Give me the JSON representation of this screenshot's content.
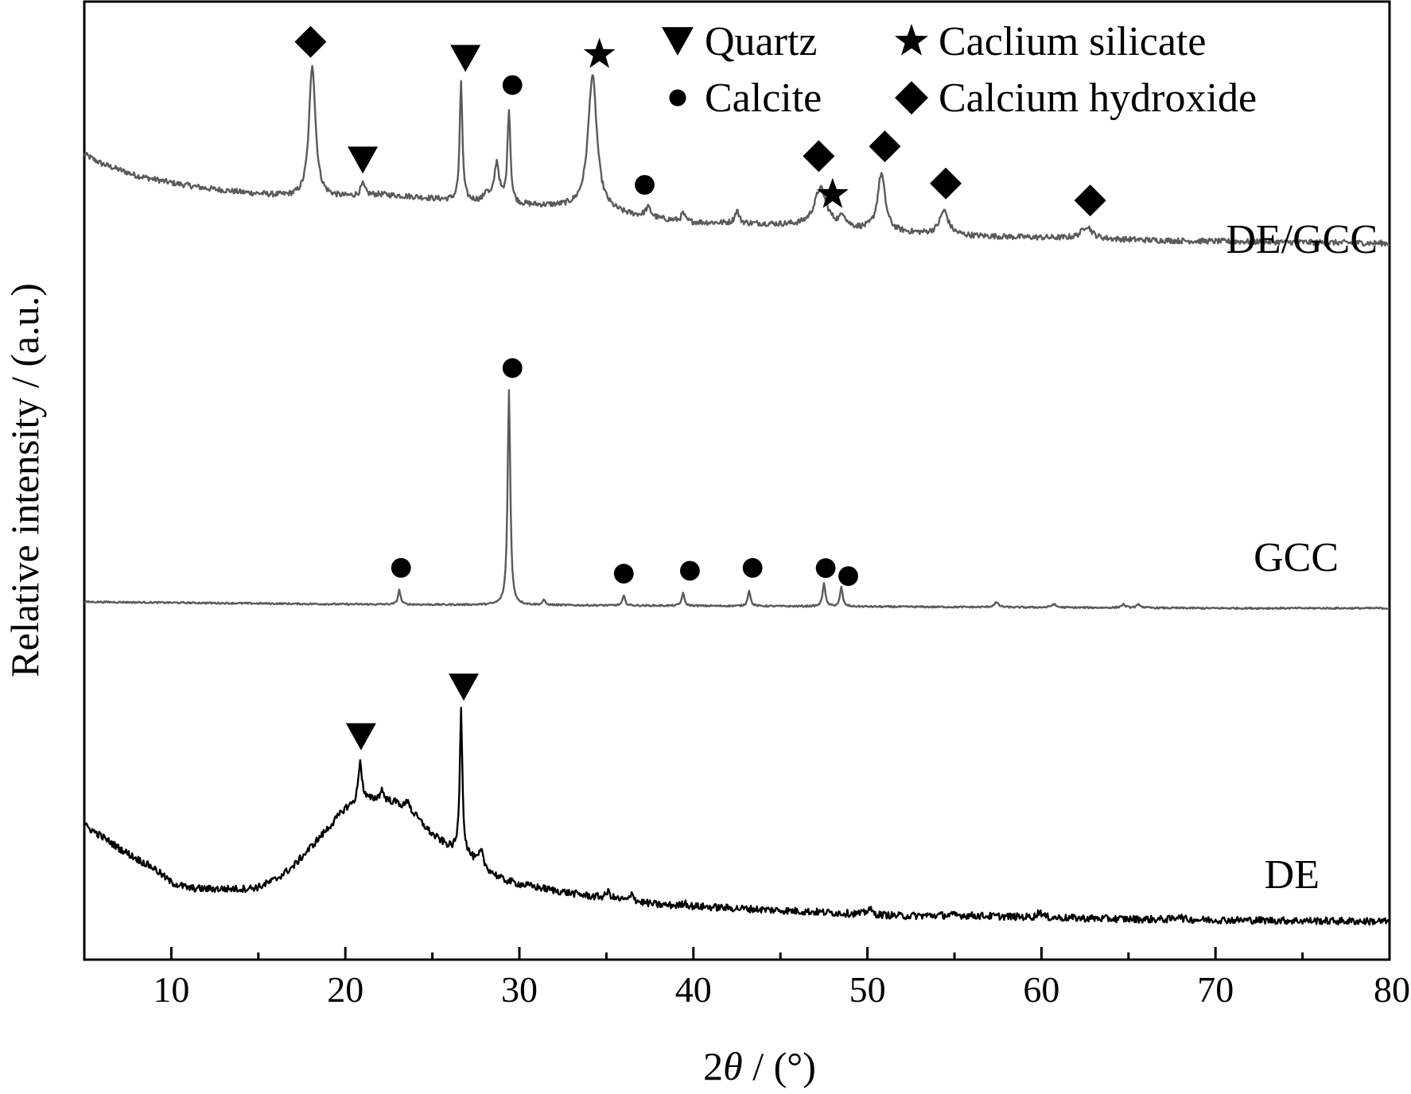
{
  "chart_data": {
    "type": "line",
    "xlabel_prefix": "2",
    "xlabel_theta": "θ",
    "xlabel_suffix": " / (°)",
    "ylabel": "Relative intensity / (a.u.)",
    "xlim": [
      5,
      80
    ],
    "x_ticks": [
      10,
      20,
      30,
      40,
      50,
      60,
      70,
      80
    ],
    "x_tick_labels": [
      "10",
      "20",
      "30",
      "40",
      "50",
      "60",
      "70",
      "80"
    ],
    "y_ticks_shown": false,
    "grid": false,
    "legend_position": "top-right",
    "legend": [
      {
        "marker": "triangle-down",
        "label": "Quartz"
      },
      {
        "marker": "star",
        "label": "Caclium silicate"
      },
      {
        "marker": "circle",
        "label": "Calcite"
      },
      {
        "marker": "diamond",
        "label": "Calcium hydroxide"
      }
    ],
    "series": [
      {
        "name": "DE/GCC",
        "color": "#5a5a5a",
        "baseline_points": [
          [
            5,
            172
          ],
          [
            6,
            160
          ],
          [
            8,
            145
          ],
          [
            10,
            136
          ],
          [
            12,
            129
          ],
          [
            14,
            124
          ],
          [
            16,
            120
          ],
          [
            17.5,
            117
          ],
          [
            20,
            118
          ],
          [
            22,
            121
          ],
          [
            24,
            118
          ],
          [
            26,
            114
          ],
          [
            28,
            112
          ],
          [
            30,
            108
          ],
          [
            32,
            106
          ],
          [
            33,
            105
          ],
          [
            34,
            104
          ],
          [
            36,
            96
          ],
          [
            38,
            90
          ],
          [
            40,
            86
          ],
          [
            42,
            85
          ],
          [
            44,
            84
          ],
          [
            46,
            82
          ],
          [
            48,
            80
          ],
          [
            50,
            76
          ],
          [
            52,
            73
          ],
          [
            54,
            71
          ],
          [
            56,
            69
          ],
          [
            58,
            68
          ],
          [
            60,
            67
          ],
          [
            64,
            65
          ],
          [
            68,
            63
          ],
          [
            72,
            62
          ],
          [
            76,
            61
          ],
          [
            80,
            60
          ]
        ],
        "peaks": [
          {
            "x": 18.1,
            "h": 168,
            "w": 0.22
          },
          {
            "x": 21.0,
            "h": 14,
            "w": 0.15
          },
          {
            "x": 26.65,
            "h": 150,
            "w": 0.09
          },
          {
            "x": 28.1,
            "h": 12,
            "w": 0.12
          },
          {
            "x": 28.7,
            "h": 50,
            "w": 0.17
          },
          {
            "x": 29.4,
            "h": 118,
            "w": 0.1
          },
          {
            "x": 34.2,
            "h": 168,
            "w": 0.3
          },
          {
            "x": 37.4,
            "h": 12,
            "w": 0.2
          },
          {
            "x": 39.4,
            "h": 10,
            "w": 0.12
          },
          {
            "x": 42.5,
            "h": 16,
            "w": 0.14
          },
          {
            "x": 47.3,
            "h": 48,
            "w": 0.42
          },
          {
            "x": 48.6,
            "h": 14,
            "w": 0.2
          },
          {
            "x": 50.8,
            "h": 72,
            "w": 0.26
          },
          {
            "x": 54.4,
            "h": 30,
            "w": 0.3
          },
          {
            "x": 62.6,
            "h": 16,
            "w": 0.35
          }
        ],
        "noise": 3.5
      },
      {
        "name": "GCC",
        "color": "#5a5a5a",
        "baseline_points": [
          [
            5,
            8
          ],
          [
            10,
            7
          ],
          [
            20,
            5
          ],
          [
            30,
            4
          ],
          [
            40,
            3
          ],
          [
            50,
            2
          ],
          [
            60,
            1
          ],
          [
            70,
            0
          ],
          [
            80,
            0
          ]
        ],
        "peaks": [
          {
            "x": 23.1,
            "h": 18,
            "w": 0.09
          },
          {
            "x": 29.4,
            "h": 270,
            "w": 0.09
          },
          {
            "x": 31.4,
            "h": 6,
            "w": 0.1
          },
          {
            "x": 36.0,
            "h": 12,
            "w": 0.09
          },
          {
            "x": 39.4,
            "h": 16,
            "w": 0.09
          },
          {
            "x": 43.2,
            "h": 20,
            "w": 0.09
          },
          {
            "x": 47.5,
            "h": 30,
            "w": 0.09
          },
          {
            "x": 48.5,
            "h": 24,
            "w": 0.09
          },
          {
            "x": 57.4,
            "h": 6,
            "w": 0.15
          },
          {
            "x": 60.7,
            "h": 4,
            "w": 0.15
          },
          {
            "x": 64.7,
            "h": 4,
            "w": 0.15
          },
          {
            "x": 65.6,
            "h": 4,
            "w": 0.15
          }
        ],
        "noise": 1.0
      },
      {
        "name": "DE",
        "color": "#000000",
        "baseline_points": [
          [
            5,
            124
          ],
          [
            6,
            110
          ],
          [
            7,
            95
          ],
          [
            8,
            82
          ],
          [
            9,
            70
          ],
          [
            10,
            52
          ],
          [
            11,
            45
          ],
          [
            12,
            44
          ],
          [
            13,
            44
          ],
          [
            14,
            44
          ],
          [
            15,
            46
          ],
          [
            16,
            56
          ],
          [
            17,
            72
          ],
          [
            18,
            96
          ],
          [
            19,
            120
          ],
          [
            20,
            145
          ],
          [
            21,
            155
          ],
          [
            22,
            157
          ],
          [
            23,
            152
          ],
          [
            24,
            136
          ],
          [
            25,
            112
          ],
          [
            26,
            96
          ],
          [
            27,
            86
          ],
          [
            28,
            70
          ],
          [
            29,
            56
          ],
          [
            30,
            50
          ],
          [
            32,
            42
          ],
          [
            34,
            35
          ],
          [
            36,
            30
          ],
          [
            38,
            24
          ],
          [
            40,
            22
          ],
          [
            42,
            20
          ],
          [
            44,
            18
          ],
          [
            46,
            16
          ],
          [
            48,
            14
          ],
          [
            50,
            12
          ],
          [
            52,
            10
          ],
          [
            55,
            11
          ],
          [
            60,
            8
          ],
          [
            65,
            6
          ],
          [
            70,
            5
          ],
          [
            75,
            4
          ],
          [
            80,
            3
          ]
        ],
        "peaks": [
          {
            "x": 20.85,
            "h": 52,
            "w": 0.12
          },
          {
            "x": 22.1,
            "h": 12,
            "w": 0.12
          },
          {
            "x": 23.6,
            "h": 14,
            "w": 0.12
          },
          {
            "x": 26.65,
            "h": 180,
            "w": 0.09
          },
          {
            "x": 27.8,
            "h": 18,
            "w": 0.14
          },
          {
            "x": 35.1,
            "h": 8,
            "w": 0.15
          },
          {
            "x": 36.5,
            "h": 12,
            "w": 0.09
          },
          {
            "x": 39.5,
            "h": 5,
            "w": 0.12
          },
          {
            "x": 50.1,
            "h": 8,
            "w": 0.14
          },
          {
            "x": 59.9,
            "h": 8,
            "w": 0.14
          },
          {
            "x": 67.9,
            "h": 6,
            "w": 0.14
          }
        ],
        "noise": 4.5
      }
    ],
    "annotations": [
      {
        "series": "DE/GCC",
        "marker": "diamond",
        "x": 18.0,
        "above": 28
      },
      {
        "series": "DE/GCC",
        "marker": "triangle-down",
        "x": 21.0,
        "above": 30
      },
      {
        "series": "DE/GCC",
        "marker": "triangle-down",
        "x": 26.9,
        "above": 30
      },
      {
        "series": "DE/GCC",
        "marker": "circle",
        "x": 29.6,
        "above": 28
      },
      {
        "series": "DE/GCC",
        "marker": "star",
        "x": 34.6,
        "above": 26
      },
      {
        "series": "DE/GCC",
        "marker": "circle",
        "x": 37.2,
        "above": 28
      },
      {
        "series": "DE/GCC",
        "marker": "diamond",
        "x": 47.2,
        "above": 40
      },
      {
        "series": "DE/GCC",
        "marker": "star",
        "x": 48.0,
        "above": 8
      },
      {
        "series": "DE/GCC",
        "marker": "diamond",
        "x": 51.0,
        "above": 34
      },
      {
        "series": "DE/GCC",
        "marker": "diamond",
        "x": 54.5,
        "above": 34
      },
      {
        "series": "DE/GCC",
        "marker": "diamond",
        "x": 62.8,
        "above": 32
      },
      {
        "series": "GCC",
        "marker": "circle",
        "x": 29.6,
        "above": 28
      },
      {
        "series": "GCC",
        "marker": "circle",
        "x": 23.2,
        "above": 28
      },
      {
        "series": "GCC",
        "marker": "circle",
        "x": 36.0,
        "above": 28
      },
      {
        "series": "GCC",
        "marker": "circle",
        "x": 39.8,
        "above": 28
      },
      {
        "series": "GCC",
        "marker": "circle",
        "x": 43.4,
        "above": 28
      },
      {
        "series": "GCC",
        "marker": "circle",
        "x": 47.6,
        "above": 18
      },
      {
        "series": "GCC",
        "marker": "circle",
        "x": 48.9,
        "above": 14
      },
      {
        "series": "DE",
        "marker": "triangle-down",
        "x": 20.9,
        "above": 30
      },
      {
        "series": "DE",
        "marker": "triangle-down",
        "x": 26.8,
        "above": 30
      }
    ]
  }
}
